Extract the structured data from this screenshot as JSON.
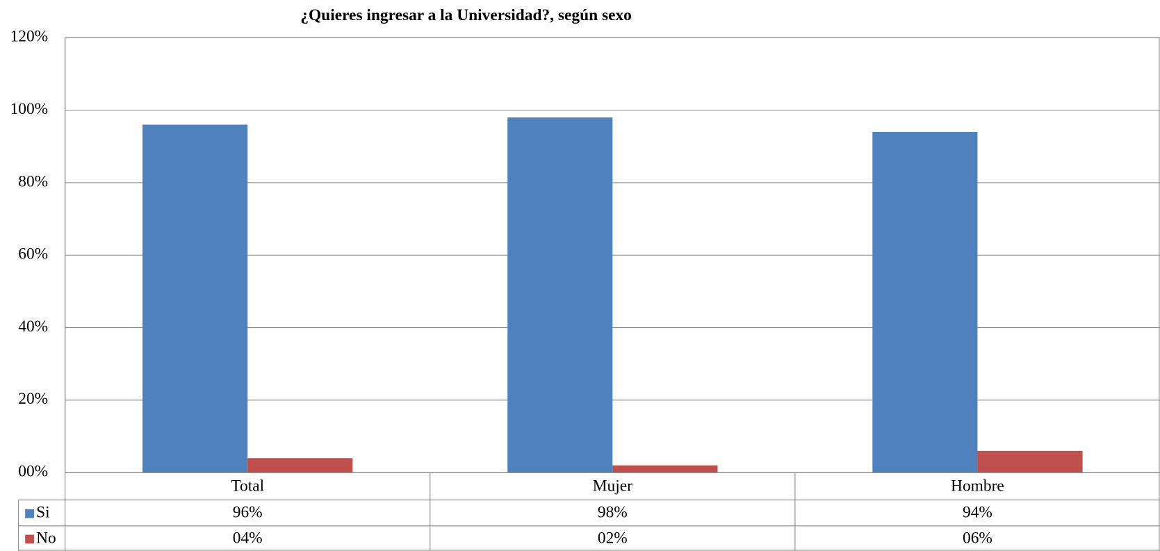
{
  "chart_data": {
    "type": "bar",
    "title": "¿Quieres ingresar a la Universidad?, según sexo",
    "categories": [
      "Total",
      "Mujer",
      "Hombre"
    ],
    "series": [
      {
        "name": "Si",
        "color": "#4f81bd",
        "values": [
          96,
          98,
          94
        ],
        "value_labels": [
          "96%",
          "98%",
          "94%"
        ]
      },
      {
        "name": "No",
        "color": "#c0504d",
        "values": [
          4,
          2,
          6
        ],
        "value_labels": [
          "04%",
          "02%",
          "06%"
        ]
      }
    ],
    "ylim": [
      0,
      120
    ],
    "yticks": [
      {
        "value": 0,
        "label": "00%"
      },
      {
        "value": 20,
        "label": "20%"
      },
      {
        "value": 40,
        "label": "40%"
      },
      {
        "value": 60,
        "label": "60%"
      },
      {
        "value": 80,
        "label": "80%"
      },
      {
        "value": 100,
        "label": "100%"
      },
      {
        "value": 120,
        "label": "120%"
      }
    ],
    "grid": true
  }
}
